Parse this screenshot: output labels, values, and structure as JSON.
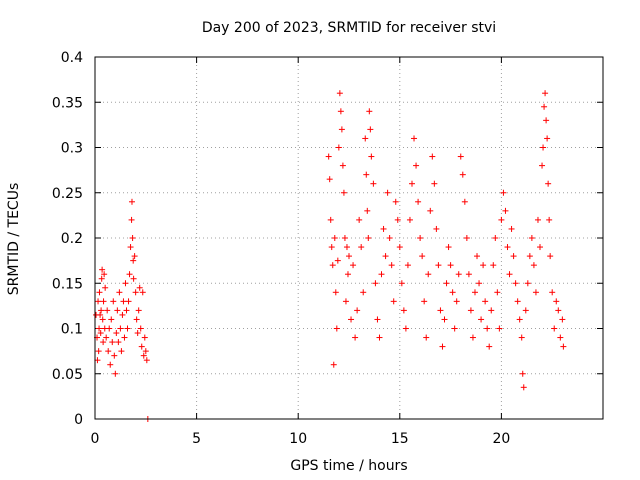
{
  "chart_data": {
    "type": "scatter",
    "title": "Day 200 of 2023, SRMTID for receiver stvi",
    "xlabel": "GPS time / hours",
    "ylabel": "SRMTID / TECUs",
    "xlim": [
      0,
      25
    ],
    "ylim": [
      0,
      0.4
    ],
    "xticks": [
      0,
      5,
      10,
      15,
      20
    ],
    "yticks": [
      0,
      0.05,
      0.1,
      0.15,
      0.2,
      0.25,
      0.3,
      0.35,
      0.4
    ],
    "grid": true,
    "legend": "none",
    "marker": "plus",
    "color": "#ff0000",
    "series": [
      {
        "points": [
          [
            0.05,
            0.115
          ],
          [
            0.1,
            0.09
          ],
          [
            0.12,
            0.065
          ],
          [
            0.15,
            0.13
          ],
          [
            0.18,
            0.075
          ],
          [
            0.2,
            0.1
          ],
          [
            0.22,
            0.14
          ],
          [
            0.25,
            0.115
          ],
          [
            0.28,
            0.095
          ],
          [
            0.3,
            0.12
          ],
          [
            0.33,
            0.155
          ],
          [
            0.35,
            0.165
          ],
          [
            0.38,
            0.11
          ],
          [
            0.4,
            0.085
          ],
          [
            0.42,
            0.13
          ],
          [
            0.45,
            0.16
          ],
          [
            0.48,
            0.1
          ],
          [
            0.5,
            0.145
          ],
          [
            0.55,
            0.09
          ],
          [
            0.6,
            0.12
          ],
          [
            0.65,
            0.075
          ],
          [
            0.7,
            0.1
          ],
          [
            0.75,
            0.06
          ],
          [
            0.8,
            0.11
          ],
          [
            0.85,
            0.085
          ],
          [
            0.9,
            0.13
          ],
          [
            0.95,
            0.07
          ],
          [
            1.0,
            0.05
          ],
          [
            1.05,
            0.095
          ],
          [
            1.1,
            0.12
          ],
          [
            1.15,
            0.085
          ],
          [
            1.2,
            0.14
          ],
          [
            1.25,
            0.1
          ],
          [
            1.3,
            0.075
          ],
          [
            1.35,
            0.115
          ],
          [
            1.4,
            0.13
          ],
          [
            1.45,
            0.09
          ],
          [
            1.5,
            0.15
          ],
          [
            1.55,
            0.12
          ],
          [
            1.6,
            0.1
          ],
          [
            1.65,
            0.13
          ],
          [
            1.7,
            0.16
          ],
          [
            1.75,
            0.19
          ],
          [
            1.8,
            0.22
          ],
          [
            1.82,
            0.24
          ],
          [
            1.85,
            0.2
          ],
          [
            1.88,
            0.175
          ],
          [
            1.9,
            0.155
          ],
          [
            1.95,
            0.18
          ],
          [
            2.0,
            0.14
          ],
          [
            2.05,
            0.11
          ],
          [
            2.1,
            0.095
          ],
          [
            2.15,
            0.12
          ],
          [
            2.2,
            0.145
          ],
          [
            2.25,
            0.1
          ],
          [
            2.3,
            0.08
          ],
          [
            2.35,
            0.14
          ],
          [
            2.4,
            0.07
          ],
          [
            2.45,
            0.09
          ],
          [
            2.5,
            0.075
          ],
          [
            2.55,
            0.065
          ],
          [
            2.6,
            0.0
          ],
          [
            11.5,
            0.29
          ],
          [
            11.55,
            0.265
          ],
          [
            11.6,
            0.22
          ],
          [
            11.65,
            0.19
          ],
          [
            11.7,
            0.17
          ],
          [
            11.75,
            0.06
          ],
          [
            11.8,
            0.2
          ],
          [
            11.85,
            0.14
          ],
          [
            11.9,
            0.1
          ],
          [
            11.95,
            0.175
          ],
          [
            12.0,
            0.3
          ],
          [
            12.05,
            0.36
          ],
          [
            12.1,
            0.34
          ],
          [
            12.15,
            0.32
          ],
          [
            12.2,
            0.28
          ],
          [
            12.25,
            0.25
          ],
          [
            12.3,
            0.2
          ],
          [
            12.35,
            0.13
          ],
          [
            12.4,
            0.19
          ],
          [
            12.45,
            0.16
          ],
          [
            12.5,
            0.18
          ],
          [
            12.6,
            0.11
          ],
          [
            12.7,
            0.17
          ],
          [
            12.8,
            0.09
          ],
          [
            12.9,
            0.12
          ],
          [
            13.0,
            0.22
          ],
          [
            13.1,
            0.19
          ],
          [
            13.2,
            0.14
          ],
          [
            13.3,
            0.31
          ],
          [
            13.35,
            0.27
          ],
          [
            13.4,
            0.23
          ],
          [
            13.45,
            0.2
          ],
          [
            13.5,
            0.34
          ],
          [
            13.55,
            0.32
          ],
          [
            13.6,
            0.29
          ],
          [
            13.7,
            0.26
          ],
          [
            13.8,
            0.15
          ],
          [
            13.9,
            0.11
          ],
          [
            14.0,
            0.09
          ],
          [
            14.1,
            0.16
          ],
          [
            14.2,
            0.21
          ],
          [
            14.3,
            0.18
          ],
          [
            14.4,
            0.25
          ],
          [
            14.5,
            0.2
          ],
          [
            14.6,
            0.17
          ],
          [
            14.7,
            0.13
          ],
          [
            14.8,
            0.24
          ],
          [
            14.9,
            0.22
          ],
          [
            15.0,
            0.19
          ],
          [
            15.1,
            0.15
          ],
          [
            15.2,
            0.12
          ],
          [
            15.3,
            0.1
          ],
          [
            15.4,
            0.17
          ],
          [
            15.5,
            0.22
          ],
          [
            15.6,
            0.26
          ],
          [
            15.7,
            0.31
          ],
          [
            15.8,
            0.28
          ],
          [
            15.9,
            0.24
          ],
          [
            16.0,
            0.2
          ],
          [
            16.1,
            0.18
          ],
          [
            16.2,
            0.13
          ],
          [
            16.3,
            0.09
          ],
          [
            16.4,
            0.16
          ],
          [
            16.5,
            0.23
          ],
          [
            16.6,
            0.29
          ],
          [
            16.7,
            0.26
          ],
          [
            16.8,
            0.21
          ],
          [
            16.9,
            0.17
          ],
          [
            17.0,
            0.12
          ],
          [
            17.1,
            0.08
          ],
          [
            17.2,
            0.11
          ],
          [
            17.3,
            0.15
          ],
          [
            17.4,
            0.19
          ],
          [
            17.5,
            0.17
          ],
          [
            17.6,
            0.14
          ],
          [
            17.7,
            0.1
          ],
          [
            17.8,
            0.13
          ],
          [
            17.9,
            0.16
          ],
          [
            18.0,
            0.29
          ],
          [
            18.1,
            0.27
          ],
          [
            18.2,
            0.24
          ],
          [
            18.3,
            0.2
          ],
          [
            18.4,
            0.16
          ],
          [
            18.5,
            0.12
          ],
          [
            18.6,
            0.09
          ],
          [
            18.7,
            0.14
          ],
          [
            18.8,
            0.18
          ],
          [
            18.9,
            0.15
          ],
          [
            19.0,
            0.11
          ],
          [
            19.1,
            0.17
          ],
          [
            19.2,
            0.13
          ],
          [
            19.3,
            0.1
          ],
          [
            19.4,
            0.08
          ],
          [
            19.5,
            0.12
          ],
          [
            19.6,
            0.17
          ],
          [
            19.7,
            0.2
          ],
          [
            19.8,
            0.14
          ],
          [
            19.9,
            0.1
          ],
          [
            20.0,
            0.22
          ],
          [
            20.1,
            0.25
          ],
          [
            20.2,
            0.23
          ],
          [
            20.3,
            0.19
          ],
          [
            20.4,
            0.16
          ],
          [
            20.5,
            0.21
          ],
          [
            20.6,
            0.18
          ],
          [
            20.7,
            0.15
          ],
          [
            20.8,
            0.13
          ],
          [
            20.9,
            0.11
          ],
          [
            21.0,
            0.09
          ],
          [
            21.05,
            0.05
          ],
          [
            21.1,
            0.035
          ],
          [
            21.2,
            0.12
          ],
          [
            21.3,
            0.15
          ],
          [
            21.4,
            0.18
          ],
          [
            21.5,
            0.2
          ],
          [
            21.6,
            0.17
          ],
          [
            21.7,
            0.14
          ],
          [
            21.8,
            0.22
          ],
          [
            21.9,
            0.19
          ],
          [
            22.0,
            0.28
          ],
          [
            22.05,
            0.3
          ],
          [
            22.1,
            0.345
          ],
          [
            22.15,
            0.36
          ],
          [
            22.2,
            0.33
          ],
          [
            22.25,
            0.31
          ],
          [
            22.3,
            0.26
          ],
          [
            22.35,
            0.22
          ],
          [
            22.4,
            0.18
          ],
          [
            22.5,
            0.14
          ],
          [
            22.6,
            0.1
          ],
          [
            22.7,
            0.13
          ],
          [
            22.8,
            0.12
          ],
          [
            22.9,
            0.09
          ],
          [
            23.0,
            0.11
          ],
          [
            23.05,
            0.08
          ]
        ]
      }
    ]
  }
}
